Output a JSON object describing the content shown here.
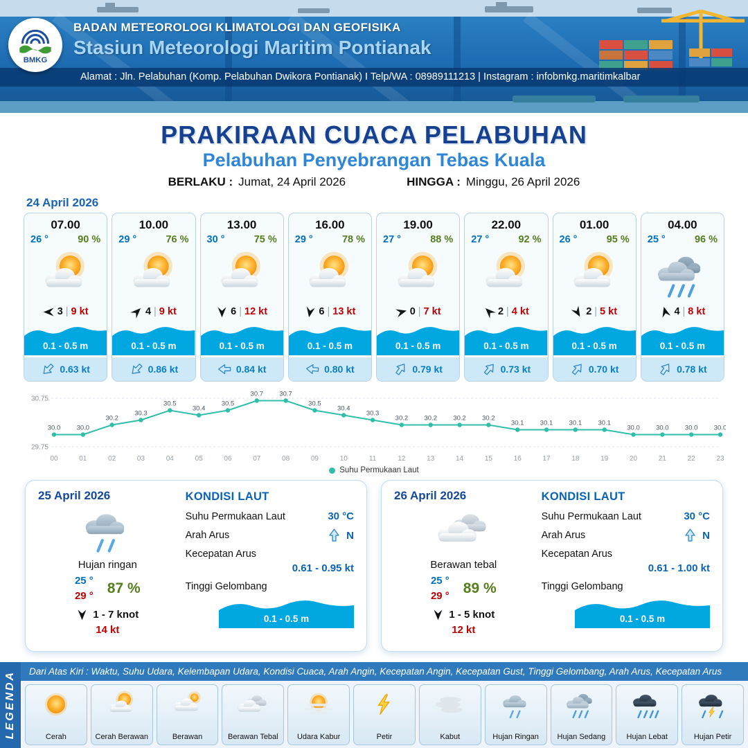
{
  "colors": {
    "header_blue": "#1e6cb3",
    "title_navy": "#17418f",
    "subtitle_blue": "#2f86d6",
    "temp_blue": "#0070c0",
    "humidity_green": "#567d1d",
    "gust_red": "#c00000",
    "wave_blue": "#00a7e0",
    "current_text_blue": "#0a7ec2",
    "sst_line_teal": "#2fbfa8",
    "footer_blue": "#2e7abc"
  },
  "ui": {
    "divider": "|"
  },
  "header": {
    "logo_text": "BMKG",
    "agency": "BADAN METEOROLOGI KLIMATOLOGI DAN GEOFISIKA",
    "station": "Stasiun Meteorologi Maritim Pontianak",
    "address": "Alamat : Jln. Pelabuhan (Komp. Pelabuhan Dwikora Pontianak) I Telp/WA : 08989111213 | Instagram : infobmkg.maritimkalbar"
  },
  "title": {
    "main": "PRAKIRAAN CUACA PELABUHAN",
    "subtitle": "Pelabuhan Penyebrangan Tebas Kuala",
    "valid_label": "BERLAKU :",
    "valid_value": "Jumat, 24 April 2026",
    "until_label": "HINGGA :",
    "until_value": "Minggu, 26 April 2026"
  },
  "day1": {
    "date": "24 April 2026",
    "hours": [
      {
        "time": "07.00",
        "temp": "26 °",
        "rh": "90 %",
        "icon": "cerah-berawan",
        "wind_dir_deg": 180,
        "wind_speed": "3",
        "gust": "9 kt",
        "wave": "0.1 - 0.5 m",
        "current_dir_deg": 135,
        "current_speed": "0.63 kt"
      },
      {
        "time": "10.00",
        "temp": "29 °",
        "rh": "76 %",
        "icon": "cerah-berawan",
        "wind_dir_deg": 315,
        "wind_speed": "4",
        "gust": "9 kt",
        "wave": "0.1 - 0.5 m",
        "current_dir_deg": 135,
        "current_speed": "0.86 kt"
      },
      {
        "time": "13.00",
        "temp": "30 °",
        "rh": "75 %",
        "icon": "cerah-berawan",
        "wind_dir_deg": 90,
        "wind_speed": "6",
        "gust": "12 kt",
        "wave": "0.1 - 0.5 m",
        "current_dir_deg": 180,
        "current_speed": "0.84 kt"
      },
      {
        "time": "16.00",
        "temp": "29 °",
        "rh": "78 %",
        "icon": "cerah-berawan",
        "wind_dir_deg": 100,
        "wind_speed": "6",
        "gust": "13 kt",
        "wave": "0.1 - 0.5 m",
        "current_dir_deg": 185,
        "current_speed": "0.80 kt"
      },
      {
        "time": "19.00",
        "temp": "27 °",
        "rh": "88 %",
        "icon": "cerah-berawan",
        "wind_dir_deg": 345,
        "wind_speed": "0",
        "gust": "7 kt",
        "wave": "0.1 - 0.5 m",
        "current_dir_deg": 305,
        "current_speed": "0.79 kt"
      },
      {
        "time": "22.00",
        "temp": "27 °",
        "rh": "92 %",
        "icon": "cerah-berawan",
        "wind_dir_deg": 225,
        "wind_speed": "2",
        "gust": "4 kt",
        "wave": "0.1 - 0.5 m",
        "current_dir_deg": 310,
        "current_speed": "0.73 kt"
      },
      {
        "time": "01.00",
        "temp": "26 °",
        "rh": "95 %",
        "icon": "cerah-berawan",
        "wind_dir_deg": 60,
        "wind_speed": "2",
        "gust": "5 kt",
        "wave": "0.1 - 0.5 m",
        "current_dir_deg": 310,
        "current_speed": "0.70 kt"
      },
      {
        "time": "04.00",
        "temp": "25 °",
        "rh": "96 %",
        "icon": "hujan-sedang",
        "wind_dir_deg": 255,
        "wind_speed": "4",
        "gust": "8 kt",
        "wave": "0.1 - 0.5 m",
        "current_dir_deg": 305,
        "current_speed": "0.78 kt"
      }
    ]
  },
  "chart_data": {
    "type": "line",
    "x": [
      "00",
      "01",
      "02",
      "03",
      "04",
      "05",
      "06",
      "07",
      "08",
      "09",
      "10",
      "11",
      "12",
      "13",
      "14",
      "15",
      "16",
      "17",
      "18",
      "19",
      "20",
      "21",
      "22",
      "23"
    ],
    "series": [
      {
        "name": "Suhu Permukaan Laut",
        "values": [
          30.0,
          30.0,
          30.2,
          30.3,
          30.5,
          30.4,
          30.5,
          30.7,
          30.7,
          30.5,
          30.4,
          30.3,
          30.2,
          30.2,
          30.2,
          30.2,
          30.1,
          30.1,
          30.1,
          30.1,
          30.0,
          30.0,
          30.0,
          30.0
        ]
      }
    ],
    "ylim": [
      29.75,
      30.75
    ],
    "yticks": [
      29.75,
      30.75
    ],
    "line_color": "#2fbfa8",
    "grid": true,
    "legend_position": "bottom",
    "xlabel": "",
    "ylabel": ""
  },
  "day_summaries": [
    {
      "date": "25 April 2026",
      "icon": "hujan-ringan",
      "condition": "Hujan ringan",
      "temp_min": "25 °",
      "temp_max": "29 °",
      "rh": "87 %",
      "wind_dir_deg": 90,
      "wind_range": "1 - 7 knot",
      "gust": "14 kt",
      "sea": {
        "heading": "KONDISI LAUT",
        "sst_label": "Suhu Permukaan Laut",
        "sst": "30 °C",
        "current_dir_label": "Arah Arus",
        "current_dir": "N",
        "current_dir_deg": 270,
        "current_speed_label": "Kecepatan Arus",
        "current_speed": "0.61 - 0.95 kt",
        "wave_label": "Tinggi Gelombang",
        "wave": "0.1 - 0.5 m"
      }
    },
    {
      "date": "26 April 2026",
      "icon": "berawan-tebal",
      "condition": "Berawan tebal",
      "temp_min": "25 °",
      "temp_max": "29 °",
      "rh": "89 %",
      "wind_dir_deg": 90,
      "wind_range": "1 - 5 knot",
      "gust": "12 kt",
      "sea": {
        "heading": "KONDISI LAUT",
        "sst_label": "Suhu Permukaan Laut",
        "sst": "30 °C",
        "current_dir_label": "Arah Arus",
        "current_dir": "N",
        "current_dir_deg": 270,
        "current_speed_label": "Kecepatan Arus",
        "current_speed": "0.61 - 1.00 kt",
        "wave_label": "Tinggi Gelombang",
        "wave": "0.1 - 0.5 m"
      }
    }
  ],
  "legend": {
    "title": "LEGENDA",
    "description": "Dari Atas Kiri : Waktu, Suhu Udara, Kelembapan Udara, Kondisi Cuaca, Arah Angin, Kecepatan Angin, Kecepatan Gust, Tinggi Gelombang, Arah Arus, Kecepatan Arus",
    "items": [
      {
        "label": "Cerah",
        "icon": "cerah"
      },
      {
        "label": "Cerah Berawan",
        "icon": "cerah-berawan"
      },
      {
        "label": "Berawan",
        "icon": "berawan"
      },
      {
        "label": "Berawan Tebal",
        "icon": "berawan-tebal"
      },
      {
        "label": "Udara Kabur",
        "icon": "udara-kabur"
      },
      {
        "label": "Petir",
        "icon": "petir"
      },
      {
        "label": "Kabut",
        "icon": "kabut"
      },
      {
        "label": "Hujan Ringan",
        "icon": "hujan-ringan"
      },
      {
        "label": "Hujan Sedang",
        "icon": "hujan-sedang"
      },
      {
        "label": "Hujan Lebat",
        "icon": "hujan-lebat"
      },
      {
        "label": "Hujan Petir",
        "icon": "hujan-petir"
      }
    ]
  }
}
